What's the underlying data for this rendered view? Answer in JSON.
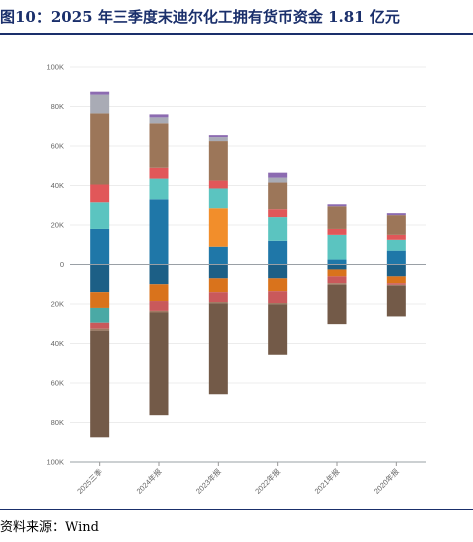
{
  "title": "图10：2025 年三季度末迪尔化工拥有货币资金 1.81 亿元",
  "source": "资料来源：Wind",
  "chart_data": {
    "type": "bar",
    "stacked": true,
    "categories": [
      "2025三季",
      "2024年报",
      "2023年报",
      "2022年报",
      "2021年报",
      "2020年报"
    ],
    "ylim": [
      -100000,
      100000
    ],
    "yticks": [
      100000,
      80000,
      60000,
      40000,
      20000,
      0,
      -20000,
      -40000,
      -60000,
      -80000,
      -100000
    ],
    "ytick_labels": [
      "100K",
      "80K",
      "60K",
      "40K",
      "20K",
      "0",
      "20K",
      "40K",
      "60K",
      "80K",
      "100K"
    ],
    "grid": true,
    "positive_series": [
      {
        "color": "#1f77a8",
        "values": [
          18000,
          33000,
          9000,
          12000,
          2500,
          7000
        ]
      },
      {
        "color": "#5bc4c0",
        "values": [
          13500,
          10500,
          0,
          12000,
          12500,
          5500
        ]
      },
      {
        "color": "#f28e2b",
        "values": [
          0,
          0,
          19500,
          0,
          0,
          0
        ]
      },
      {
        "color": "#5bc4c0",
        "values": [
          0,
          0,
          10000,
          0,
          0,
          0
        ]
      },
      {
        "color": "#e15759",
        "values": [
          9000,
          5500,
          4000,
          4000,
          3000,
          2500
        ]
      },
      {
        "color": "#9c7659",
        "values": [
          36000,
          22500,
          20000,
          13500,
          11500,
          10000
        ]
      },
      {
        "color": "#a9abb5",
        "values": [
          9500,
          3000,
          2000,
          2500,
          0,
          0
        ]
      },
      {
        "color": "#8c6bb1",
        "values": [
          1500,
          1500,
          1000,
          2500,
          1000,
          1000
        ]
      }
    ],
    "negative_series": [
      {
        "color": "#1c5f86",
        "values": [
          14000,
          10000,
          7000,
          7000,
          2500,
          6000
        ]
      },
      {
        "color": "#d9731c",
        "values": [
          8000,
          8500,
          7000,
          6500,
          3500,
          3500
        ]
      },
      {
        "color": "#4aa9a5",
        "values": [
          7500,
          0,
          0,
          0,
          0,
          0
        ]
      },
      {
        "color": "#c9595b",
        "values": [
          3000,
          5000,
          5000,
          6000,
          3500,
          800
        ]
      },
      {
        "color": "#a07a63",
        "values": [
          1000,
          800,
          700,
          700,
          700,
          400
        ]
      },
      {
        "color": "#735a48",
        "values": [
          54000,
          52000,
          46000,
          25500,
          20000,
          15600
        ]
      }
    ]
  }
}
